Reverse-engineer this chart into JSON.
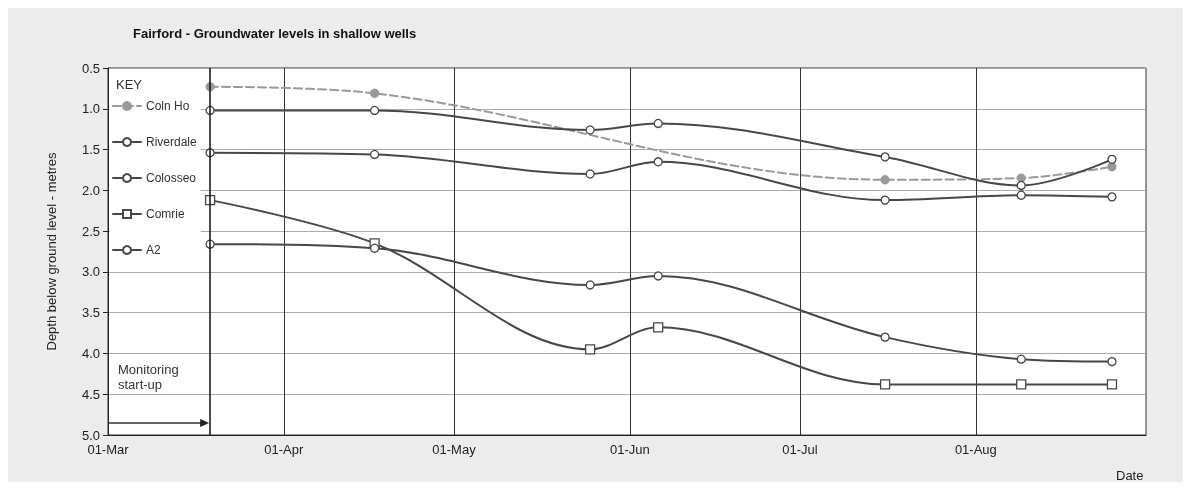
{
  "chart_data": {
    "type": "line",
    "title": "Fairford - Groundwater levels in shallow wells",
    "xlabel": "Date",
    "ylabel": "Depth below ground level - metres",
    "legend_title": "KEY",
    "x": [
      "--03-19",
      "--04-17",
      "--05-25",
      "--06-06",
      "--07-16",
      "--08-09",
      "--08-25"
    ],
    "series": [
      {
        "name": "Coln Ho",
        "color": "#999999",
        "line_style": "dashed",
        "marker": "circle",
        "values": [
          0.73,
          0.81,
          null,
          null,
          1.87,
          1.85,
          1.71
        ]
      },
      {
        "name": "Riverdale",
        "color": "#474747",
        "marker": "circle",
        "values": [
          1.02,
          1.02,
          1.26,
          1.18,
          1.59,
          1.94,
          1.62
        ]
      },
      {
        "name": "Colosseo",
        "color": "#474747",
        "marker": "circle",
        "values": [
          1.54,
          1.56,
          1.8,
          1.65,
          2.12,
          2.06,
          2.08
        ]
      },
      {
        "name": "Comrie",
        "color": "#474747",
        "marker": "square",
        "values": [
          2.12,
          2.65,
          3.95,
          3.68,
          4.38,
          4.38,
          4.38
        ]
      },
      {
        "name": "A2",
        "color": "#474747",
        "marker": "circle",
        "values": [
          2.66,
          2.71,
          3.16,
          3.05,
          3.8,
          4.07,
          4.1
        ]
      }
    ],
    "xlim": [
      "--03-01",
      "--08-31"
    ],
    "xticks": [
      {
        "value": "--03-01",
        "label": "01-Mar"
      },
      {
        "value": "--04-01",
        "label": "01-Apr"
      },
      {
        "value": "--05-01",
        "label": "01-May"
      },
      {
        "value": "--06-01",
        "label": "01-Jun"
      },
      {
        "value": "--07-01",
        "label": "01-Jul"
      },
      {
        "value": "--08-01",
        "label": "01-Aug"
      }
    ],
    "ylim": [
      5.0,
      0.5
    ],
    "yticks": [
      {
        "value": 0.5,
        "label": "0.5"
      },
      {
        "value": 1.0,
        "label": "1.0"
      },
      {
        "value": 1.5,
        "label": "1.5"
      },
      {
        "value": 2.0,
        "label": "2.0"
      },
      {
        "value": 2.5,
        "label": "2.5"
      },
      {
        "value": 3.0,
        "label": "3.0"
      },
      {
        "value": 3.5,
        "label": "3.5"
      },
      {
        "value": 4.0,
        "label": "4.0"
      },
      {
        "value": 4.5,
        "label": "4.5"
      },
      {
        "value": 5.0,
        "label": "5.0"
      }
    ],
    "ref_lines": [
      {
        "axis": "x",
        "value": "--03-19",
        "label": "Monitoring start-up",
        "color": "#111111"
      }
    ],
    "grid": true,
    "legend": "top left"
  }
}
